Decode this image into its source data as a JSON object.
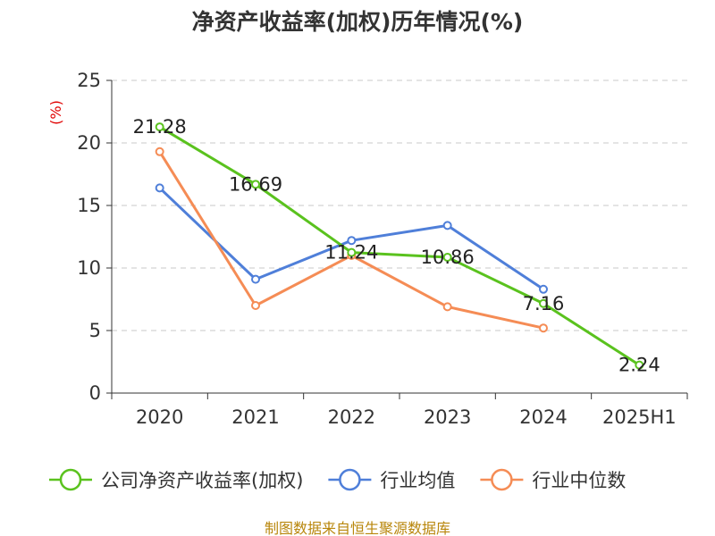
{
  "chart_data": {
    "type": "line",
    "title": "净资产收益率(加权)历年情况(%)",
    "ylabel": "(%)",
    "xlabel": "",
    "categories": [
      "2020",
      "2021",
      "2022",
      "2023",
      "2024",
      "2025H1"
    ],
    "ylim": [
      0,
      25
    ],
    "yticks": [
      0,
      5,
      10,
      15,
      20,
      25
    ],
    "grid": true,
    "legend_position": "bottom",
    "series": [
      {
        "name": "公司净资产收益率(加权)",
        "color": "#5ac21e",
        "values": [
          21.28,
          16.69,
          11.24,
          10.86,
          7.16,
          2.24
        ],
        "labels": [
          "21.28",
          "16.69",
          "11.24",
          "10.86",
          "7.16",
          "2.24"
        ]
      },
      {
        "name": "行业均值",
        "color": "#4f7fd9",
        "values": [
          16.4,
          9.1,
          12.2,
          13.4,
          8.3,
          null
        ]
      },
      {
        "name": "行业中位数",
        "color": "#f58c55",
        "values": [
          19.3,
          7.0,
          11.0,
          6.9,
          5.2,
          null
        ]
      }
    ],
    "source": "制图数据来自恒生聚源数据库"
  }
}
